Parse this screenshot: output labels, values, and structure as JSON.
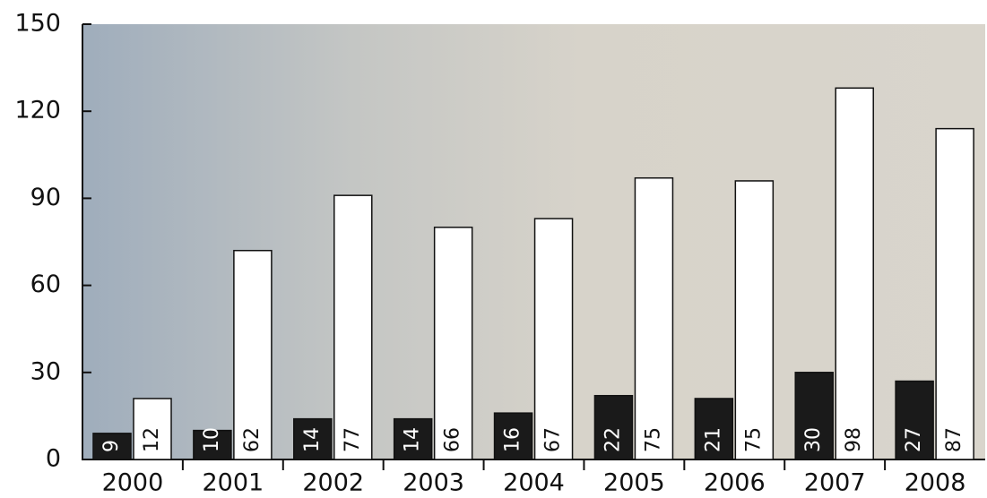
{
  "chart_data": {
    "type": "bar",
    "categories": [
      "2000",
      "2001",
      "2002",
      "2003",
      "2004",
      "2005",
      "2006",
      "2007",
      "2008"
    ],
    "series": [
      {
        "color": "#1a1a1a",
        "values": [
          9,
          10,
          14,
          14,
          16,
          22,
          21,
          30,
          27
        ]
      },
      {
        "color": "#ffffff",
        "values": [
          12,
          62,
          77,
          66,
          67,
          75,
          75,
          98,
          87
        ]
      }
    ],
    "stacked_totals_for_second": true,
    "ylim": [
      0,
      150
    ],
    "yticks": [
      0,
      30,
      60,
      90,
      120,
      150
    ]
  }
}
